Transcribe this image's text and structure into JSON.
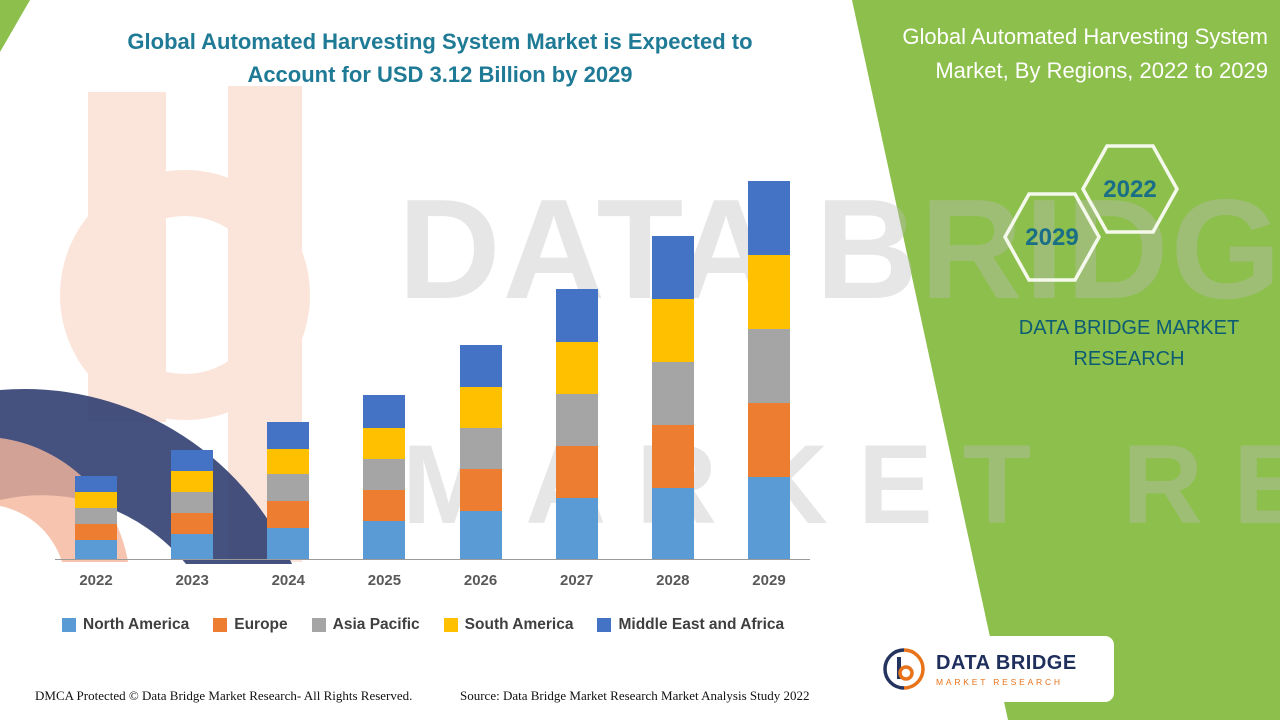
{
  "colors": {
    "panel_green": "#8cbf4b",
    "title_teal": "#1f7a96",
    "brand_teal": "#0d5c74",
    "hexagon_text_teal": "#1a6e86",
    "logo_navy": "#1f2f5c",
    "logo_orange": "#e8731a",
    "axis_label_gray": "#595959"
  },
  "header": {
    "title_line1": "Global Automated Harvesting System Market is Expected to",
    "title_line2": "Account for USD 3.12 Billion by 2029"
  },
  "chart_data": {
    "type": "bar",
    "stacked": true,
    "title": "Global Automated Harvesting System Market is Expected to Account for USD 3.12 Billion by 2029",
    "unit": "USD Billion",
    "categories": [
      "2022",
      "2023",
      "2024",
      "2025",
      "2026",
      "2027",
      "2028",
      "2029"
    ],
    "series": [
      {
        "name": "North America",
        "color": "#5b9bd5",
        "values": [
          0.16,
          0.21,
          0.26,
          0.31,
          0.4,
          0.5,
          0.59,
          0.68
        ]
      },
      {
        "name": "Europe",
        "color": "#ed7d31",
        "values": [
          0.13,
          0.17,
          0.22,
          0.26,
          0.35,
          0.43,
          0.52,
          0.61
        ]
      },
      {
        "name": "Asia Pacific",
        "color": "#a5a5a5",
        "values": [
          0.13,
          0.17,
          0.22,
          0.26,
          0.34,
          0.43,
          0.52,
          0.61
        ]
      },
      {
        "name": "South America",
        "color": "#ffc000",
        "values": [
          0.13,
          0.17,
          0.21,
          0.26,
          0.34,
          0.43,
          0.52,
          0.61
        ]
      },
      {
        "name": "Middle East and Africa",
        "color": "#4472c4",
        "values": [
          0.13,
          0.17,
          0.22,
          0.27,
          0.35,
          0.44,
          0.52,
          0.61
        ]
      }
    ],
    "totals": [
      0.68,
      0.89,
      1.13,
      1.36,
      1.78,
      2.23,
      2.67,
      3.12
    ],
    "ylim": [
      0,
      3.2
    ],
    "grid": false,
    "y_axis_visible": false,
    "legend_position": "bottom"
  },
  "right_panel": {
    "title": "Global Automated Harvesting System Market, By Regions, 2022 to 2029",
    "hex_start": "2022",
    "hex_end": "2029",
    "brand": "DATA BRIDGE MARKET RESEARCH"
  },
  "watermark": {
    "line1": "DATA BRIDGE",
    "line2": "MARKET RESEARCH"
  },
  "logo": {
    "name": "DATA BRIDGE",
    "tagline": "MARKET RESEARCH"
  },
  "footer": {
    "dmca": "DMCA Protected © Data Bridge Market Research- All Rights Reserved.",
    "source": "Source: Data Bridge Market Research Market Analysis Study 2022"
  }
}
